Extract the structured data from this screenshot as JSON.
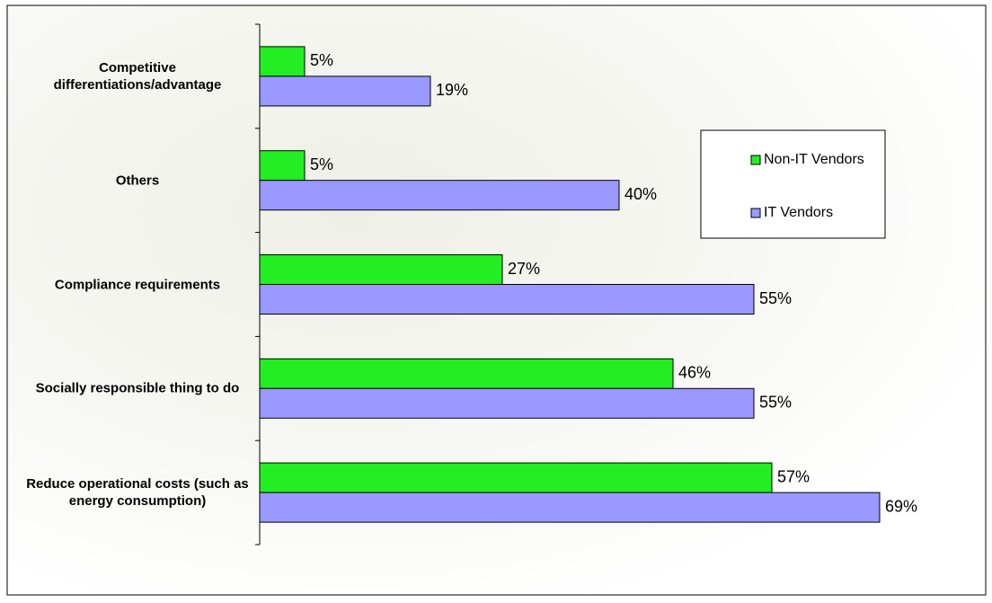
{
  "chart_data": {
    "type": "hbar",
    "categories": [
      "Competitive differentiations/advantage",
      "Others",
      "Compliance requirements",
      "Socially responsible thing to do",
      "Reduce operational costs (such as energy consumption)"
    ],
    "series": [
      {
        "name": "Non-IT Vendors",
        "color": "#22ee22",
        "values": [
          5,
          5,
          27,
          46,
          57
        ],
        "value_labels": [
          "5%",
          "5%",
          "27%",
          "46%",
          "57%"
        ]
      },
      {
        "name": "IT Vendors",
        "color": "#9999ff",
        "values": [
          19,
          40,
          55,
          55,
          69
        ],
        "value_labels": [
          "19%",
          "40%",
          "55%",
          "55%",
          "69%"
        ]
      }
    ],
    "xlim": [
      0,
      70
    ],
    "legend": "right"
  }
}
